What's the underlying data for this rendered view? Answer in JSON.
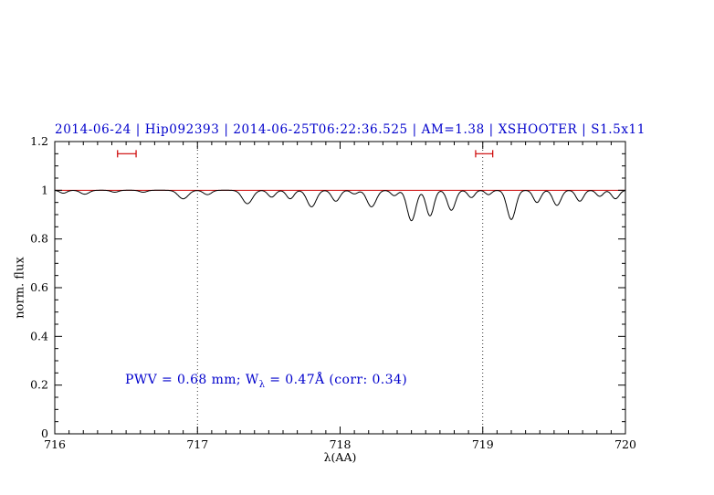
{
  "observation": {
    "date": "2014-06-24",
    "target": "Hip092393",
    "obs_time": "2014-06-25T06:22:36.525",
    "airmass": "AM=1.38",
    "instrument": "XSHOOTER",
    "slit": "S1.5x11"
  },
  "measurements": {
    "pwv_mm": 0.68,
    "w_lambda_angstrom": 0.47,
    "corr": 0.34
  },
  "chart_data": {
    "type": "line",
    "title": "2014-06-24 | Hip092393 | 2014-06-25T06:22:36.525 | AM=1.38 | XSHOOTER | S1.5x11",
    "title_color": "#0000cc",
    "xlabel": "λ(AA)",
    "ylabel": "norm. flux",
    "xlim": [
      716,
      720
    ],
    "ylim": [
      0,
      1.2
    ],
    "xticks": {
      "values": [
        716,
        717,
        718,
        719,
        720
      ],
      "labels": [
        "716",
        "717",
        "718",
        "719",
        "720"
      ]
    },
    "yticks": {
      "values": [
        0,
        0.2,
        0.4,
        0.6,
        0.8,
        1,
        1.2
      ],
      "labels": [
        "0",
        "0.2",
        "0.4",
        "0.6",
        "0.8",
        "1",
        "1.2"
      ]
    },
    "x_minor_step": 0.1,
    "y_minor_step": 0.05,
    "grid": "off",
    "vlines": [
      717,
      719
    ],
    "continuum": {
      "y": 1.0,
      "color": "#cc0000"
    },
    "interval_markers": [
      {
        "x1": 716.44,
        "x2": 716.57,
        "y": 1.15,
        "color": "#cc0000"
      },
      {
        "x1": 718.95,
        "x2": 719.07,
        "y": 1.15,
        "color": "#cc0000"
      }
    ],
    "annotation": {
      "prefix": "PWV = 0.68 mm; W",
      "sub": "λ",
      "suffix": " = 0.47Å (corr: 0.34)",
      "color": "#0000cc",
      "x": 716.5,
      "y": 0.2
    },
    "spectrum_model": {
      "continuum_level": 1.0,
      "absorption_lines": [
        {
          "center": 716.06,
          "depth": 0.012,
          "sigma": 0.025
        },
        {
          "center": 716.21,
          "depth": 0.016,
          "sigma": 0.03
        },
        {
          "center": 716.42,
          "depth": 0.008,
          "sigma": 0.025
        },
        {
          "center": 716.62,
          "depth": 0.008,
          "sigma": 0.025
        },
        {
          "center": 716.9,
          "depth": 0.035,
          "sigma": 0.035
        },
        {
          "center": 717.07,
          "depth": 0.018,
          "sigma": 0.028
        },
        {
          "center": 717.35,
          "depth": 0.055,
          "sigma": 0.035
        },
        {
          "center": 717.52,
          "depth": 0.028,
          "sigma": 0.026
        },
        {
          "center": 717.65,
          "depth": 0.035,
          "sigma": 0.026
        },
        {
          "center": 717.8,
          "depth": 0.068,
          "sigma": 0.032
        },
        {
          "center": 717.97,
          "depth": 0.045,
          "sigma": 0.028
        },
        {
          "center": 718.1,
          "depth": 0.015,
          "sigma": 0.024
        },
        {
          "center": 718.22,
          "depth": 0.068,
          "sigma": 0.032
        },
        {
          "center": 718.38,
          "depth": 0.022,
          "sigma": 0.024
        },
        {
          "center": 718.5,
          "depth": 0.125,
          "sigma": 0.03
        },
        {
          "center": 718.63,
          "depth": 0.105,
          "sigma": 0.027
        },
        {
          "center": 718.78,
          "depth": 0.082,
          "sigma": 0.028
        },
        {
          "center": 718.92,
          "depth": 0.03,
          "sigma": 0.024
        },
        {
          "center": 719.04,
          "depth": 0.018,
          "sigma": 0.022
        },
        {
          "center": 719.2,
          "depth": 0.12,
          "sigma": 0.03
        },
        {
          "center": 719.38,
          "depth": 0.05,
          "sigma": 0.026
        },
        {
          "center": 719.52,
          "depth": 0.062,
          "sigma": 0.028
        },
        {
          "center": 719.68,
          "depth": 0.045,
          "sigma": 0.026
        },
        {
          "center": 719.82,
          "depth": 0.025,
          "sigma": 0.024
        },
        {
          "center": 719.93,
          "depth": 0.035,
          "sigma": 0.026
        }
      ]
    }
  }
}
